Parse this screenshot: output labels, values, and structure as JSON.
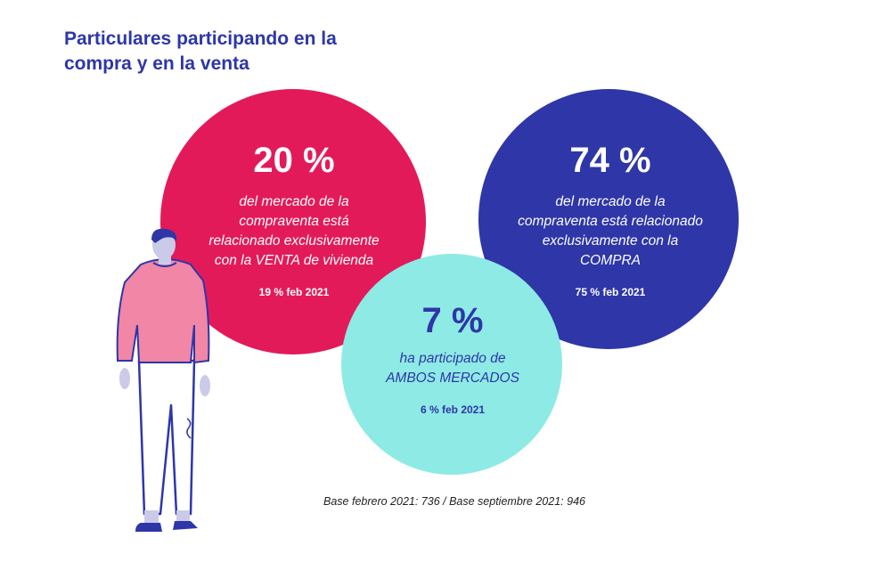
{
  "title": "Particulares participando en la compra y en la venta",
  "colors": {
    "accent": "#2e36a8",
    "venta": "#e31a5a",
    "compra": "#2e36a8",
    "ambos": "#8eeae4"
  },
  "stats": {
    "venta": {
      "pct": "20 %",
      "desc_lines": [
        "del mercado de la",
        "compraventa está",
        "relacionado exclusivamente",
        "con la VENTA de vivienda"
      ],
      "comparison": "19 % feb 2021"
    },
    "compra": {
      "pct": "74 %",
      "desc_lines": [
        "del mercado de la",
        "compraventa está relacionado",
        "exclusivamente con la",
        "COMPRA"
      ],
      "comparison": "75 % feb 2021"
    },
    "ambos": {
      "pct": "7 %",
      "desc_lines": [
        "ha participado de",
        "AMBOS MERCADOS"
      ],
      "comparison": "6 % feb 2021"
    }
  },
  "base_note": "Base febrero 2021: 736 / Base septiembre 2021: 946",
  "chart_data": {
    "type": "bubble",
    "title": "Particulares participando en la compra y en la venta",
    "items": [
      {
        "label": "VENTA exclusivamente",
        "value": 20,
        "previous_value": 19,
        "previous_period": "feb 2021",
        "unit": "%"
      },
      {
        "label": "COMPRA exclusivamente",
        "value": 74,
        "previous_value": 75,
        "previous_period": "feb 2021",
        "unit": "%"
      },
      {
        "label": "AMBOS MERCADOS",
        "value": 7,
        "previous_value": 6,
        "previous_period": "feb 2021",
        "unit": "%"
      }
    ],
    "note": "Base febrero 2021: 736 / Base septiembre 2021: 946"
  }
}
